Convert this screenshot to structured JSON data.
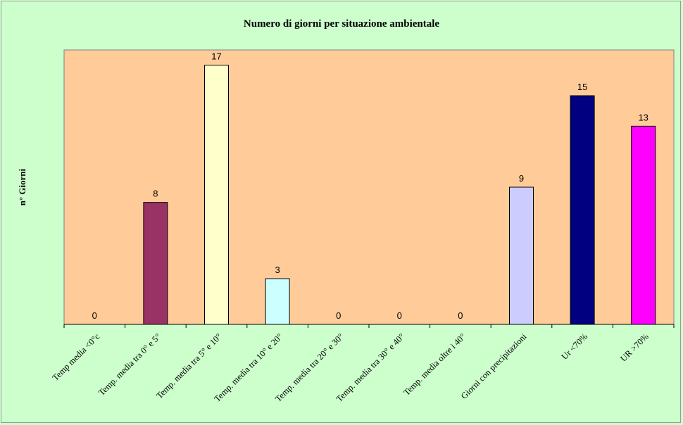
{
  "chart_data": {
    "type": "bar",
    "title": "Numero di giorni per situazione ambientale",
    "ylabel": "n° Giorni",
    "xlabel": "",
    "ylim": [
      0,
      18
    ],
    "grid": false,
    "legend": "none",
    "plot_background": "#ffcc99",
    "page_background": "#ccffcc",
    "categories": [
      "Temp media <0°c",
      "Temp. media tra 0° e 5°",
      "Temp. media tra 5° e 10°",
      "Temp. media tra 10° e 20°",
      "Temp. media tra 20° e 30°",
      "Temp. media tra 30° e 40°",
      "Temp. media oltre i 40°",
      "Giorni con precipitazioni",
      "Ur  <70%",
      "UR >70%"
    ],
    "values": [
      0,
      8,
      17,
      3,
      0,
      0,
      0,
      9,
      15,
      13
    ],
    "data_labels": [
      "0",
      "8",
      "17",
      "3",
      "0",
      "0",
      "0",
      "9",
      "15",
      "13"
    ],
    "colors": [
      "#993366",
      "#993366",
      "#ffffcc",
      "#ccffff",
      "#ccffff",
      "#ccffff",
      "#ccffff",
      "#ccccff",
      "#000080",
      "#ff00ff"
    ]
  }
}
